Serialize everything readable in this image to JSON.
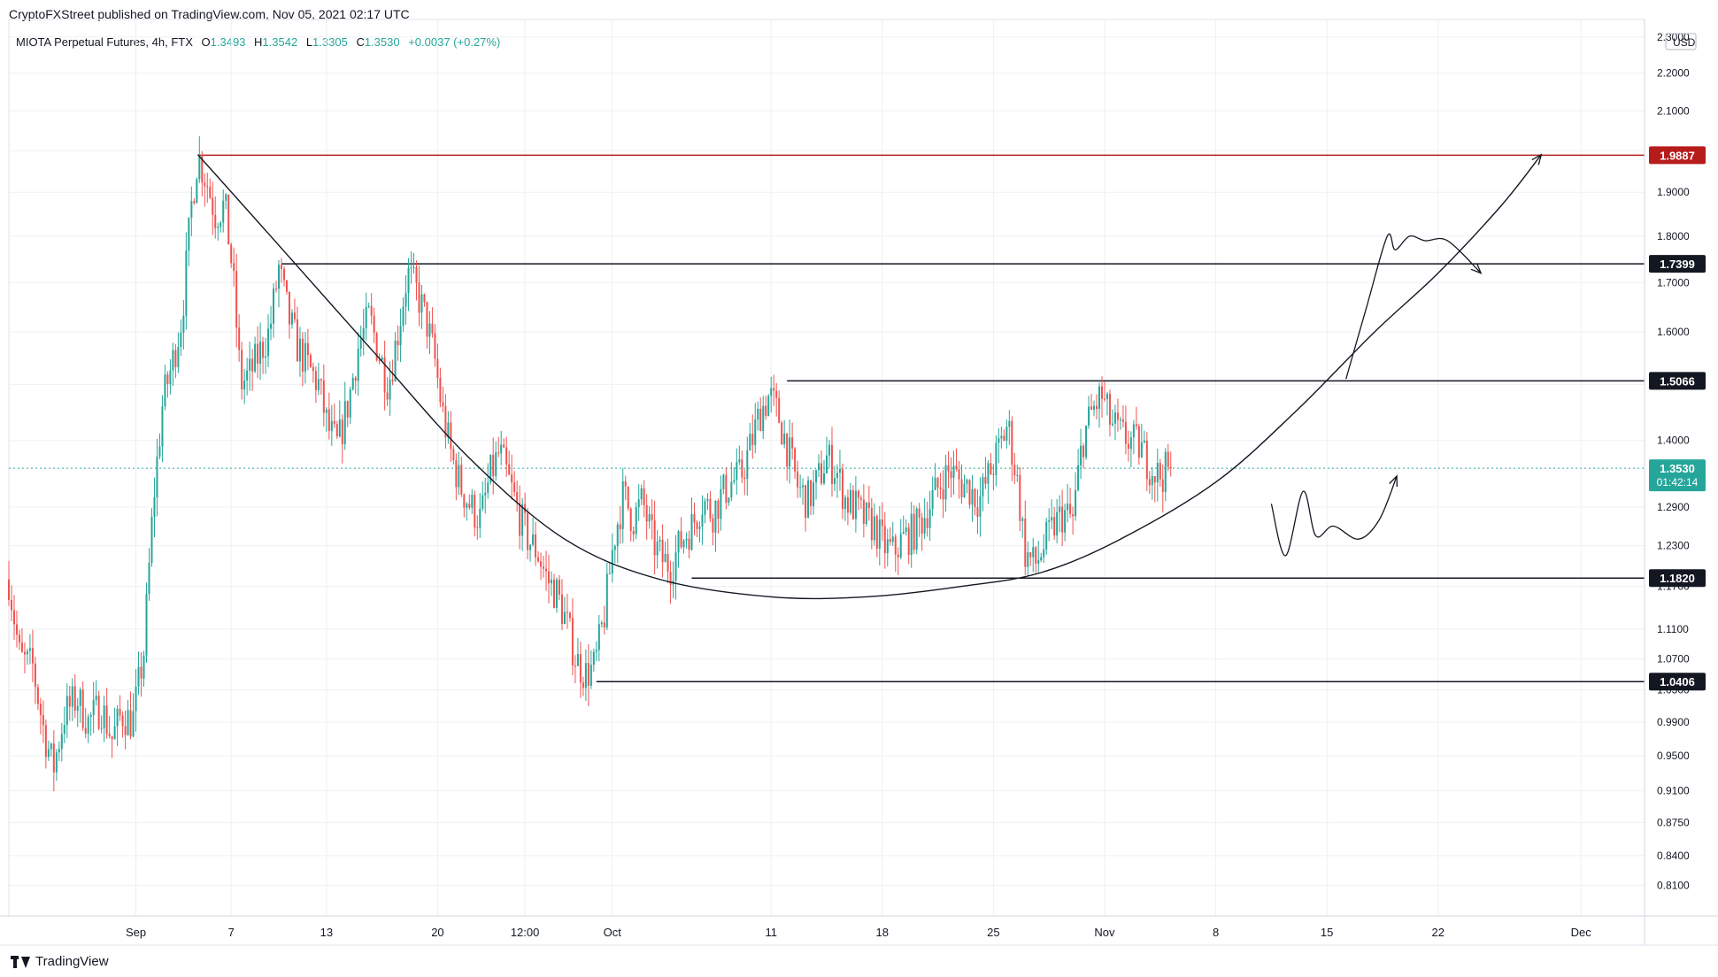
{
  "header": {
    "published": "CryptoFXStreet published on TradingView.com, Nov 05, 2021 02:17 UTC"
  },
  "legend": {
    "symbol": "MIOTA Perpetual Futures, 4h, FTX",
    "open_label": "O",
    "open": "1.3493",
    "high_label": "H",
    "high": "1.3542",
    "low_label": "L",
    "low": "1.3305",
    "close_label": "C",
    "close": "1.3530",
    "change": "+0.0037 (+0.27%)"
  },
  "footer": {
    "brand": "TradingView"
  },
  "colors": {
    "up": "#26a69a",
    "down": "#ef5350",
    "resistance": "#b71c1c",
    "level": "#131722",
    "current": "#26a69a",
    "grid": "#eef0f3"
  },
  "chart_data": {
    "type": "candlestick",
    "timeframe": "4h",
    "currency": "USD",
    "y_scale": "log",
    "ylim": [
      0.78,
      2.35
    ],
    "y_ticks": [
      "0.8100",
      "0.8400",
      "0.8750",
      "0.9100",
      "0.9500",
      "0.9900",
      "1.0300",
      "1.0700",
      "1.1100",
      "1.1700",
      "1.2300",
      "1.2900",
      "1.4000",
      "1.5000",
      "1.6000",
      "1.7000",
      "1.8000",
      "1.9000",
      "2.0000",
      "2.1000",
      "2.2000",
      "2.3000"
    ],
    "x_ticks": [
      {
        "label": "Sep",
        "day": 0
      },
      {
        "label": "7",
        "day": 6
      },
      {
        "label": "13",
        "day": 12
      },
      {
        "label": "20",
        "day": 19
      },
      {
        "label": "12:00",
        "day": 24.5
      },
      {
        "label": "Oct",
        "day": 30
      },
      {
        "label": "11",
        "day": 40
      },
      {
        "label": "18",
        "day": 47
      },
      {
        "label": "25",
        "day": 54
      },
      {
        "label": "Nov",
        "day": 61
      },
      {
        "label": "8",
        "day": 68
      },
      {
        "label": "15",
        "day": 75
      },
      {
        "label": "22",
        "day": 82
      },
      {
        "label": "Dec",
        "day": 91
      }
    ],
    "xlim_days": [
      -8,
      95
    ],
    "key_levels": [
      {
        "value": 1.9887,
        "label": "1.9887",
        "kind": "resistance",
        "from_day": 3.9
      },
      {
        "value": 1.7399,
        "label": "1.7399",
        "kind": "level",
        "from_day": 9.2
      },
      {
        "value": 1.5066,
        "label": "1.5066",
        "kind": "level",
        "from_day": 41
      },
      {
        "value": 1.182,
        "label": "1.1820",
        "kind": "level",
        "from_day": 35
      },
      {
        "value": 1.0406,
        "label": "1.0406",
        "kind": "level",
        "from_day": 29
      }
    ],
    "current_price": {
      "value": 1.353,
      "label": "1.3530",
      "countdown": "01:42:14"
    },
    "price_path": [
      [
        -8,
        1.18
      ],
      [
        -7.3,
        1.07
      ],
      [
        -6.5,
        1.06
      ],
      [
        -5.8,
        0.98
      ],
      [
        -5.2,
        0.935
      ],
      [
        -4.5,
        1.0
      ],
      [
        -3.7,
        1.02
      ],
      [
        -3,
        0.99
      ],
      [
        -2.2,
        1.01
      ],
      [
        -1.5,
        0.97
      ],
      [
        -0.9,
        1.0
      ],
      [
        -0.2,
        0.99
      ],
      [
        0.5,
        1.08
      ],
      [
        1.1,
        1.3
      ],
      [
        1.7,
        1.47
      ],
      [
        2.3,
        1.54
      ],
      [
        2.9,
        1.63
      ],
      [
        3.5,
        1.87
      ],
      [
        3.9,
        1.99
      ],
      [
        4.5,
        1.92
      ],
      [
        5.0,
        1.85
      ],
      [
        5.6,
        1.87
      ],
      [
        6.1,
        1.72
      ],
      [
        6.6,
        1.5
      ],
      [
        7.2,
        1.52
      ],
      [
        7.8,
        1.56
      ],
      [
        8.4,
        1.6
      ],
      [
        9.0,
        1.73
      ],
      [
        9.6,
        1.63
      ],
      [
        10.2,
        1.57
      ],
      [
        10.9,
        1.53
      ],
      [
        11.5,
        1.5
      ],
      [
        12.1,
        1.42
      ],
      [
        12.7,
        1.39
      ],
      [
        13.4,
        1.47
      ],
      [
        14.0,
        1.57
      ],
      [
        14.7,
        1.63
      ],
      [
        15.3,
        1.56
      ],
      [
        15.9,
        1.5
      ],
      [
        16.5,
        1.6
      ],
      [
        17.1,
        1.72
      ],
      [
        17.7,
        1.68
      ],
      [
        18.3,
        1.62
      ],
      [
        18.8,
        1.55
      ],
      [
        19.3,
        1.45
      ],
      [
        19.9,
        1.37
      ],
      [
        20.5,
        1.32
      ],
      [
        21.1,
        1.29
      ],
      [
        21.7,
        1.27
      ],
      [
        22.3,
        1.34
      ],
      [
        22.9,
        1.38
      ],
      [
        23.5,
        1.33
      ],
      [
        24.1,
        1.28
      ],
      [
        24.7,
        1.24
      ],
      [
        25.3,
        1.22
      ],
      [
        25.9,
        1.18
      ],
      [
        26.5,
        1.16
      ],
      [
        27.1,
        1.12
      ],
      [
        27.7,
        1.07
      ],
      [
        28.3,
        1.05
      ],
      [
        28.9,
        1.06
      ],
      [
        29.5,
        1.13
      ],
      [
        30.1,
        1.24
      ],
      [
        30.7,
        1.31
      ],
      [
        31.3,
        1.27
      ],
      [
        31.9,
        1.3
      ],
      [
        32.5,
        1.24
      ],
      [
        33.1,
        1.21
      ],
      [
        33.7,
        1.2
      ],
      [
        34.4,
        1.24
      ],
      [
        35.0,
        1.26
      ],
      [
        35.7,
        1.3
      ],
      [
        36.3,
        1.28
      ],
      [
        36.9,
        1.31
      ],
      [
        37.5,
        1.33
      ],
      [
        38.1,
        1.34
      ],
      [
        38.7,
        1.39
      ],
      [
        39.3,
        1.45
      ],
      [
        39.9,
        1.48
      ],
      [
        40.5,
        1.44
      ],
      [
        41.1,
        1.38
      ],
      [
        41.7,
        1.32
      ],
      [
        42.3,
        1.3
      ],
      [
        42.9,
        1.33
      ],
      [
        43.5,
        1.37
      ],
      [
        44.1,
        1.35
      ],
      [
        44.7,
        1.3
      ],
      [
        45.3,
        1.29
      ],
      [
        45.9,
        1.27
      ],
      [
        46.5,
        1.26
      ],
      [
        47.1,
        1.23
      ],
      [
        47.7,
        1.22
      ],
      [
        48.3,
        1.24
      ],
      [
        48.9,
        1.25
      ],
      [
        49.5,
        1.27
      ],
      [
        50.1,
        1.3
      ],
      [
        50.7,
        1.33
      ],
      [
        51.3,
        1.35
      ],
      [
        51.9,
        1.33
      ],
      [
        52.5,
        1.32
      ],
      [
        53.1,
        1.3
      ],
      [
        53.7,
        1.34
      ],
      [
        54.3,
        1.38
      ],
      [
        54.9,
        1.43
      ],
      [
        55.5,
        1.33
      ],
      [
        56.0,
        1.22
      ],
      [
        56.6,
        1.2
      ],
      [
        57.2,
        1.23
      ],
      [
        57.8,
        1.26
      ],
      [
        58.4,
        1.28
      ],
      [
        59.0,
        1.27
      ],
      [
        59.6,
        1.4
      ],
      [
        60.2,
        1.45
      ],
      [
        60.8,
        1.48
      ],
      [
        61.4,
        1.43
      ],
      [
        62.0,
        1.41
      ],
      [
        62.6,
        1.4
      ],
      [
        63.2,
        1.39
      ],
      [
        63.8,
        1.36
      ],
      [
        64.4,
        1.34
      ],
      [
        65.0,
        1.35
      ],
      [
        65.3,
        1.353
      ]
    ],
    "drawings": {
      "rounding_bottom_arc": [
        [
          3.9,
          1.99
        ],
        [
          9,
          1.78
        ],
        [
          15,
          1.56
        ],
        [
          21,
          1.37
        ],
        [
          27,
          1.24
        ],
        [
          33,
          1.18
        ],
        [
          40,
          1.155
        ],
        [
          46,
          1.155
        ],
        [
          52,
          1.17
        ],
        [
          57,
          1.19
        ],
        [
          62,
          1.24
        ],
        [
          68,
          1.33
        ],
        [
          73,
          1.45
        ],
        [
          78,
          1.6
        ],
        [
          82,
          1.72
        ],
        [
          86,
          1.87
        ],
        [
          88.5,
          1.99
        ]
      ],
      "scenario_up": [
        [
          76.2,
          1.51
        ],
        [
          77.5,
          1.65
        ],
        [
          78.8,
          1.8
        ],
        [
          79.3,
          1.77
        ],
        [
          80.2,
          1.8
        ],
        [
          81.2,
          1.79
        ],
        [
          82.6,
          1.79
        ],
        [
          84.7,
          1.72
        ]
      ],
      "scenario_range": [
        [
          71.5,
          1.295
        ],
        [
          72.4,
          1.215
        ],
        [
          73.5,
          1.315
        ],
        [
          74.3,
          1.245
        ],
        [
          75.4,
          1.26
        ],
        [
          77.0,
          1.24
        ],
        [
          78.3,
          1.27
        ],
        [
          79.4,
          1.34
        ]
      ]
    }
  }
}
